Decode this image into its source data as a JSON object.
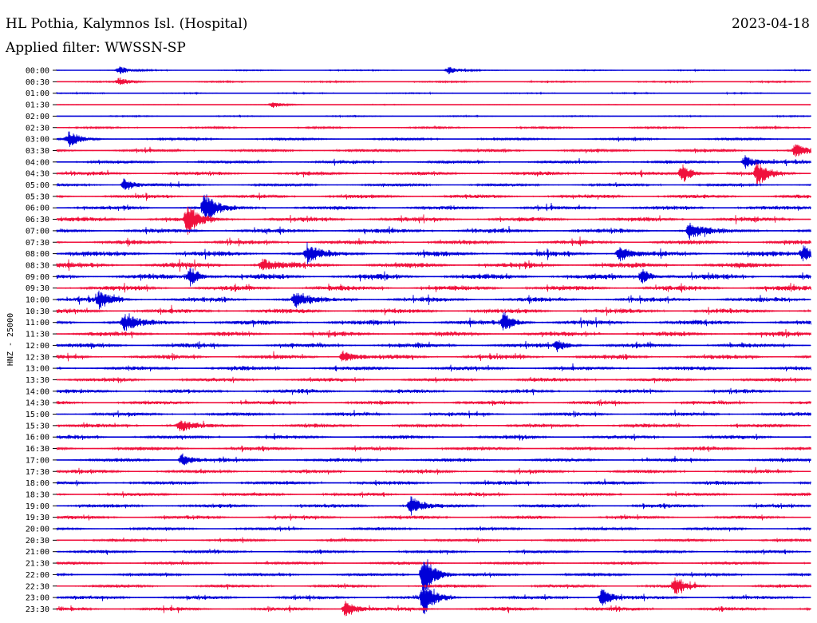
{
  "header": {
    "station_title": "HL Pothia, Kalymnos Isl. (Hospital)",
    "date": "2023-04-18",
    "filter_label": "Applied filter: WWSSN-SP"
  },
  "chart_data": {
    "type": "line",
    "title": "HL Pothia, Kalymnos Isl. (Hospital)",
    "subtitle": "Applied filter: WWSSN-SP",
    "ylabel": "HNZ - 25000",
    "xlabel": "",
    "row_times": [
      "00:00",
      "00:30",
      "01:00",
      "01:30",
      "02:00",
      "02:30",
      "03:00",
      "03:30",
      "04:00",
      "04:30",
      "05:00",
      "05:30",
      "06:00",
      "06:30",
      "07:00",
      "07:30",
      "08:00",
      "08:30",
      "09:00",
      "09:30",
      "10:00",
      "10:30",
      "11:00",
      "11:30",
      "12:00",
      "12:30",
      "13:00",
      "13:30",
      "14:00",
      "14:30",
      "15:00",
      "15:30",
      "16:00",
      "16:30",
      "17:00",
      "17:30",
      "18:00",
      "18:30",
      "19:00",
      "19:30",
      "20:00",
      "20:30",
      "21:00",
      "21:30",
      "22:00",
      "22:30",
      "23:00",
      "23:30"
    ],
    "trace_minutes_per_row": 30,
    "series_colors": [
      "#0000d8",
      "#f0103c"
    ],
    "noise_level": [
      0.6,
      0.8,
      0.6,
      0.3,
      0.6,
      1.0,
      1.4,
      1.6,
      1.8,
      2.0,
      1.6,
      2.0,
      2.2,
      2.6,
      2.4,
      2.4,
      2.8,
      3.0,
      3.0,
      2.8,
      2.6,
      2.6,
      2.6,
      2.6,
      2.4,
      2.4,
      2.2,
      2.0,
      2.2,
      2.0,
      2.0,
      2.0,
      2.0,
      2.0,
      2.0,
      2.0,
      2.0,
      1.8,
      2.0,
      1.8,
      1.6,
      1.6,
      1.6,
      1.6,
      1.6,
      1.8,
      2.0,
      2.0
    ],
    "events": [
      {
        "row": "00:00",
        "minute": 2.5,
        "amp": 5
      },
      {
        "row": "00:00",
        "minute": 15.6,
        "amp": 5
      },
      {
        "row": "00:30",
        "minute": 2.5,
        "amp": 5
      },
      {
        "row": "01:30",
        "minute": 8.6,
        "amp": 4
      },
      {
        "row": "03:00",
        "minute": 0.5,
        "amp": 9
      },
      {
        "row": "03:30",
        "minute": 29.4,
        "amp": 9
      },
      {
        "row": "04:00",
        "minute": 27.4,
        "amp": 9
      },
      {
        "row": "04:30",
        "minute": 24.9,
        "amp": 12
      },
      {
        "row": "04:30",
        "minute": 27.9,
        "amp": 14
      },
      {
        "row": "05:00",
        "minute": 2.7,
        "amp": 9
      },
      {
        "row": "06:00",
        "minute": 5.9,
        "amp": 20
      },
      {
        "row": "06:30",
        "minute": 5.2,
        "amp": 18
      },
      {
        "row": "07:00",
        "minute": 25.2,
        "amp": 12
      },
      {
        "row": "08:00",
        "minute": 10.0,
        "amp": 10
      },
      {
        "row": "08:00",
        "minute": 22.4,
        "amp": 10
      },
      {
        "row": "08:00",
        "minute": 29.7,
        "amp": 10
      },
      {
        "row": "08:30",
        "minute": 8.2,
        "amp": 8
      },
      {
        "row": "09:00",
        "minute": 5.3,
        "amp": 12
      },
      {
        "row": "09:00",
        "minute": 23.3,
        "amp": 10
      },
      {
        "row": "10:00",
        "minute": 1.7,
        "amp": 10
      },
      {
        "row": "10:00",
        "minute": 9.5,
        "amp": 10
      },
      {
        "row": "11:00",
        "minute": 2.7,
        "amp": 10
      },
      {
        "row": "11:00",
        "minute": 17.8,
        "amp": 12
      },
      {
        "row": "12:00",
        "minute": 19.9,
        "amp": 8
      },
      {
        "row": "12:30",
        "minute": 11.4,
        "amp": 8
      },
      {
        "row": "15:30",
        "minute": 4.9,
        "amp": 8
      },
      {
        "row": "17:00",
        "minute": 5.0,
        "amp": 9
      },
      {
        "row": "19:00",
        "minute": 14.1,
        "amp": 12
      },
      {
        "row": "22:00",
        "minute": 14.6,
        "amp": 30
      },
      {
        "row": "22:30",
        "minute": 24.6,
        "amp": 10
      },
      {
        "row": "23:00",
        "minute": 14.6,
        "amp": 22
      },
      {
        "row": "23:00",
        "minute": 21.7,
        "amp": 12
      },
      {
        "row": "23:30",
        "minute": 11.5,
        "amp": 12
      }
    ]
  }
}
